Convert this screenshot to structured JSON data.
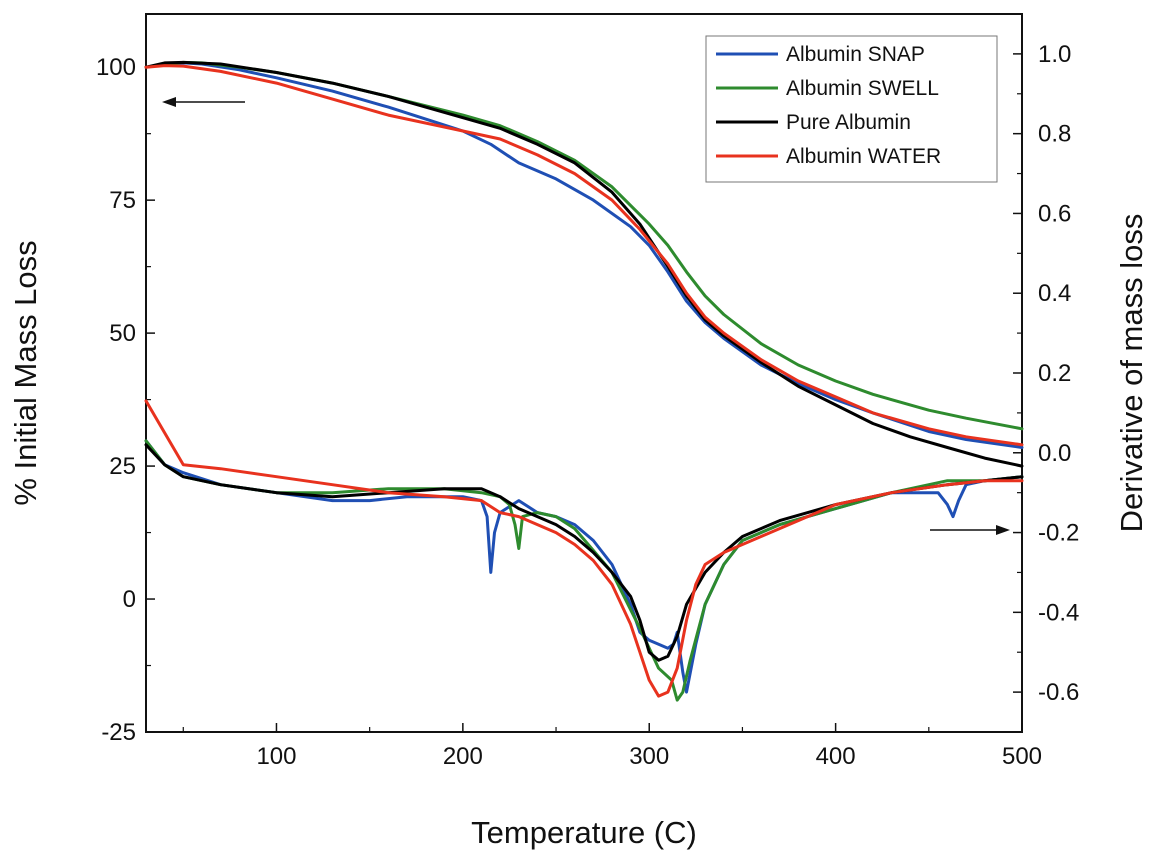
{
  "chart_data": {
    "type": "line",
    "title": "",
    "xlabel": "Temperature (C)",
    "ylabel_left": "% Initial Mass Loss",
    "ylabel_right": "Derivative of mass loss",
    "xlim": [
      30,
      500
    ],
    "ylim_left": [
      -25,
      110
    ],
    "ylim_right": [
      -0.7,
      1.1
    ],
    "x_ticks": [
      100,
      200,
      300,
      400,
      500
    ],
    "y_ticks_left": [
      -25,
      0,
      25,
      50,
      75,
      100
    ],
    "y_ticks_right": [
      -0.6,
      -0.4,
      -0.2,
      0.0,
      0.2,
      0.4,
      0.6,
      0.8,
      1.0
    ],
    "x_tick_labels": [
      "100",
      "200",
      "300",
      "400",
      "500"
    ],
    "y_tick_labels_left": [
      "-25",
      "0",
      "25",
      "50",
      "75",
      "100"
    ],
    "y_tick_labels_right": [
      "-0.6",
      "-0.4",
      "-0.2",
      "0.0",
      "0.2",
      "0.4",
      "0.6",
      "0.8",
      "1.0"
    ],
    "grid": false,
    "legend_position": "top-right",
    "annotations": [
      {
        "type": "arrow",
        "direction": "left",
        "axis": "left"
      },
      {
        "type": "arrow",
        "direction": "right",
        "axis": "right"
      }
    ],
    "series": [
      {
        "name": "Albumin SNAP",
        "color": "#1f4fb4",
        "axis": "left",
        "kind": "mass",
        "x": [
          30,
          40,
          50,
          60,
          80,
          100,
          130,
          160,
          200,
          215,
          230,
          250,
          270,
          290,
          300,
          310,
          320,
          330,
          340,
          360,
          380,
          400,
          420,
          450,
          470,
          500
        ],
        "y": [
          100,
          100.5,
          100.8,
          100.6,
          99.5,
          98,
          95.5,
          92.5,
          88,
          85.5,
          82,
          79,
          75,
          70,
          66.5,
          61.5,
          56,
          52,
          49,
          44,
          40.5,
          37.5,
          35,
          31.5,
          30,
          28.5
        ]
      },
      {
        "name": "Albumin SWELL",
        "color": "#2e8b2e",
        "axis": "left",
        "kind": "mass",
        "x": [
          30,
          40,
          50,
          60,
          80,
          100,
          130,
          160,
          200,
          220,
          240,
          260,
          280,
          300,
          310,
          320,
          330,
          340,
          360,
          380,
          400,
          420,
          450,
          470,
          500
        ],
        "y": [
          100,
          100.6,
          100.9,
          100.8,
          100,
          99,
          97,
          94.5,
          91,
          89,
          86,
          82.5,
          77.5,
          70.5,
          66.5,
          61.5,
          57,
          53.5,
          48,
          44,
          41,
          38.5,
          35.5,
          34,
          32
        ]
      },
      {
        "name": "Pure Albumin",
        "color": "#000000",
        "axis": "left",
        "kind": "mass",
        "x": [
          30,
          40,
          50,
          70,
          100,
          130,
          160,
          200,
          220,
          240,
          260,
          280,
          295,
          310,
          320,
          330,
          340,
          360,
          380,
          400,
          420,
          440,
          460,
          480,
          500
        ],
        "y": [
          100,
          100.8,
          100.9,
          100.6,
          99,
          97,
          94.5,
          90.5,
          88.5,
          85.5,
          82,
          76.5,
          70.5,
          62.5,
          57,
          52.5,
          49.5,
          44.5,
          40,
          36.5,
          33,
          30.5,
          28.5,
          26.5,
          25
        ]
      },
      {
        "name": "Albumin WATER",
        "color": "#e8321e",
        "axis": "left",
        "kind": "mass",
        "x": [
          30,
          40,
          50,
          70,
          100,
          130,
          160,
          200,
          220,
          240,
          260,
          280,
          295,
          310,
          320,
          330,
          340,
          360,
          380,
          400,
          420,
          450,
          470,
          500
        ],
        "y": [
          100,
          100.3,
          100.2,
          99.2,
          97,
          94,
          91,
          88,
          86.5,
          83.5,
          80,
          75,
          69.5,
          63,
          57.5,
          53,
          50,
          45,
          41,
          38,
          35,
          32,
          30.5,
          29
        ]
      },
      {
        "name": "Albumin SNAP",
        "color": "#1f4fb4",
        "axis": "right",
        "kind": "derivative",
        "x": [
          30,
          40,
          50,
          70,
          100,
          130,
          150,
          170,
          200,
          210,
          213,
          215,
          217,
          220,
          230,
          240,
          250,
          260,
          270,
          280,
          290,
          295,
          300,
          305,
          310,
          313,
          315,
          318,
          320,
          325,
          330,
          340,
          350,
          370,
          400,
          430,
          455,
          460,
          463,
          466,
          470,
          480,
          500
        ],
        "y": [
          0.03,
          -0.03,
          -0.05,
          -0.08,
          -0.1,
          -0.12,
          -0.12,
          -0.11,
          -0.11,
          -0.12,
          -0.16,
          -0.3,
          -0.2,
          -0.15,
          -0.12,
          -0.15,
          -0.16,
          -0.18,
          -0.22,
          -0.28,
          -0.38,
          -0.45,
          -0.47,
          -0.48,
          -0.49,
          -0.48,
          -0.45,
          -0.55,
          -0.6,
          -0.48,
          -0.38,
          -0.28,
          -0.22,
          -0.18,
          -0.14,
          -0.1,
          -0.1,
          -0.13,
          -0.16,
          -0.12,
          -0.08,
          -0.07,
          -0.06
        ]
      },
      {
        "name": "Albumin SWELL",
        "color": "#2e8b2e",
        "axis": "right",
        "kind": "derivative",
        "x": [
          30,
          40,
          50,
          70,
          100,
          130,
          160,
          190,
          210,
          220,
          225,
          228,
          230,
          232,
          240,
          250,
          260,
          280,
          295,
          305,
          312,
          315,
          318,
          322,
          330,
          340,
          350,
          370,
          400,
          430,
          460,
          480,
          500
        ],
        "y": [
          0.03,
          -0.03,
          -0.06,
          -0.08,
          -0.1,
          -0.1,
          -0.09,
          -0.09,
          -0.1,
          -0.11,
          -0.13,
          -0.18,
          -0.24,
          -0.16,
          -0.15,
          -0.16,
          -0.19,
          -0.3,
          -0.44,
          -0.54,
          -0.57,
          -0.62,
          -0.6,
          -0.52,
          -0.38,
          -0.28,
          -0.22,
          -0.18,
          -0.14,
          -0.1,
          -0.07,
          -0.07,
          -0.06
        ]
      },
      {
        "name": "Pure Albumin",
        "color": "#000000",
        "axis": "right",
        "kind": "derivative",
        "x": [
          30,
          40,
          50,
          70,
          100,
          130,
          160,
          190,
          210,
          220,
          230,
          240,
          250,
          260,
          270,
          280,
          290,
          295,
          300,
          305,
          310,
          315,
          320,
          330,
          340,
          350,
          370,
          400,
          430,
          460,
          480,
          500
        ],
        "y": [
          0.02,
          -0.03,
          -0.06,
          -0.08,
          -0.1,
          -0.11,
          -0.1,
          -0.09,
          -0.09,
          -0.11,
          -0.14,
          -0.16,
          -0.18,
          -0.21,
          -0.25,
          -0.3,
          -0.36,
          -0.42,
          -0.5,
          -0.52,
          -0.51,
          -0.46,
          -0.38,
          -0.3,
          -0.25,
          -0.21,
          -0.17,
          -0.13,
          -0.1,
          -0.08,
          -0.07,
          -0.06
        ]
      },
      {
        "name": "Albumin WATER",
        "color": "#e8321e",
        "axis": "right",
        "kind": "derivative",
        "x": [
          30,
          40,
          50,
          70,
          100,
          130,
          160,
          190,
          210,
          220,
          230,
          240,
          250,
          260,
          270,
          280,
          290,
          295,
          300,
          305,
          310,
          315,
          320,
          325,
          330,
          340,
          360,
          380,
          400,
          430,
          460,
          480,
          500
        ],
        "y": [
          0.13,
          0.05,
          -0.03,
          -0.04,
          -0.06,
          -0.08,
          -0.1,
          -0.11,
          -0.12,
          -0.15,
          -0.16,
          -0.18,
          -0.2,
          -0.23,
          -0.27,
          -0.33,
          -0.43,
          -0.5,
          -0.57,
          -0.61,
          -0.6,
          -0.54,
          -0.42,
          -0.33,
          -0.28,
          -0.25,
          -0.21,
          -0.17,
          -0.13,
          -0.1,
          -0.08,
          -0.07,
          -0.07
        ]
      }
    ]
  }
}
